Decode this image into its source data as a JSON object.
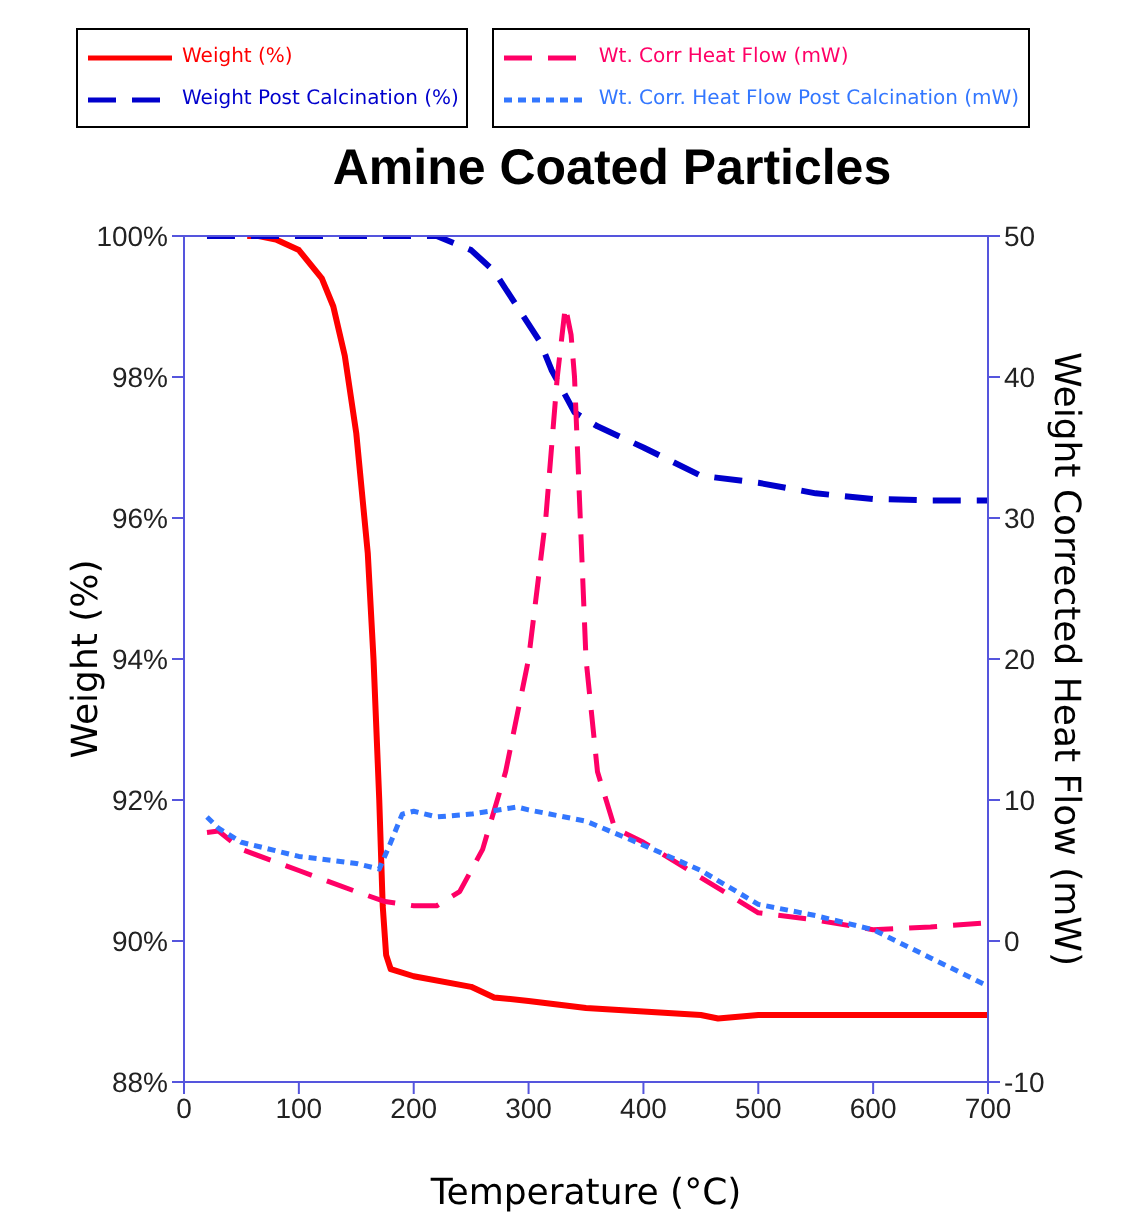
{
  "chart_data": {
    "type": "line",
    "title": "Amine Coated Particles",
    "xlabel": "Temperature (°C)",
    "ylabel": "Weight (%)",
    "y2label": "Weight Corrected Heat Flow (mW)",
    "xlim": [
      0,
      700
    ],
    "xticks": [
      0,
      100,
      200,
      300,
      400,
      500,
      600,
      700
    ],
    "ylim": [
      88,
      100
    ],
    "yticks": [
      {
        "value": 88,
        "label": "88%"
      },
      {
        "value": 90,
        "label": "90%"
      },
      {
        "value": 92,
        "label": "92%"
      },
      {
        "value": 94,
        "label": "94%"
      },
      {
        "value": 96,
        "label": "96%"
      },
      {
        "value": 98,
        "label": "98%"
      },
      {
        "value": 100,
        "label": "100%"
      }
    ],
    "y2lim": [
      -10,
      50
    ],
    "y2ticks": [
      -10,
      0,
      10,
      20,
      30,
      40,
      50
    ],
    "grid": false,
    "legend": "top",
    "marker": "none",
    "series": [
      {
        "name": "Weight (%)",
        "color": "#ff0000",
        "line_style": "solid",
        "x": [
          55,
          65,
          80,
          100,
          120,
          130,
          140,
          150,
          160,
          165,
          170,
          173,
          176,
          180,
          200,
          250,
          270,
          300,
          350,
          400,
          450,
          465,
          500,
          600,
          700
        ],
        "values": [
          100,
          100,
          99.95,
          99.8,
          99.4,
          99,
          98.3,
          97.2,
          95.5,
          94,
          92,
          90.5,
          89.8,
          89.6,
          89.5,
          89.35,
          89.2,
          89.15,
          89.05,
          89,
          88.95,
          88.9,
          88.95,
          88.95,
          88.95
        ]
      },
      {
        "name": "Weight Post Calcination (%)",
        "color": "#0000cc",
        "line_style": "dashed",
        "x": [
          20,
          200,
          220,
          250,
          270,
          290,
          310,
          320,
          330,
          340,
          360,
          400,
          450,
          500,
          550,
          600,
          650,
          700
        ],
        "values": [
          100,
          100,
          100,
          99.8,
          99.5,
          99,
          98.5,
          98.1,
          97.8,
          97.5,
          97.3,
          97,
          96.6,
          96.5,
          96.35,
          96.27,
          96.25,
          96.25
        ]
      },
      {
        "name": "Wt. Corr Heat Flow (mW)",
        "color": "#ff0066",
        "line_style": "dashed",
        "axis": "y2",
        "x": [
          20,
          30,
          50,
          100,
          150,
          175,
          200,
          220,
          240,
          260,
          280,
          300,
          315,
          325,
          332,
          337,
          340,
          345,
          350,
          360,
          375,
          400,
          420,
          450,
          480,
          500,
          550,
          600,
          650,
          700
        ],
        "values": [
          7.7,
          7.8,
          6.5,
          5,
          3.5,
          2.8,
          2.5,
          2.5,
          3.5,
          6.5,
          12,
          20,
          30,
          40,
          45,
          43,
          40,
          30,
          20,
          12,
          8,
          7,
          6,
          4.5,
          3,
          2,
          1.5,
          0.8,
          1,
          1.3
        ]
      },
      {
        "name": "Wt. Corr. Heat Flow Post Calcination (mW)",
        "color": "#3377ff",
        "line_style": "dotted",
        "axis": "y2",
        "x": [
          20,
          30,
          50,
          100,
          150,
          170,
          180,
          190,
          200,
          220,
          250,
          290,
          300,
          350,
          400,
          450,
          500,
          550,
          600,
          650,
          700
        ],
        "values": [
          8.8,
          8,
          7,
          6,
          5.5,
          5.1,
          7,
          9,
          9.2,
          8.8,
          9,
          9.5,
          9.3,
          8.5,
          6.8,
          5,
          2.6,
          1.8,
          0.8,
          -1.2,
          -3.2
        ]
      }
    ]
  }
}
